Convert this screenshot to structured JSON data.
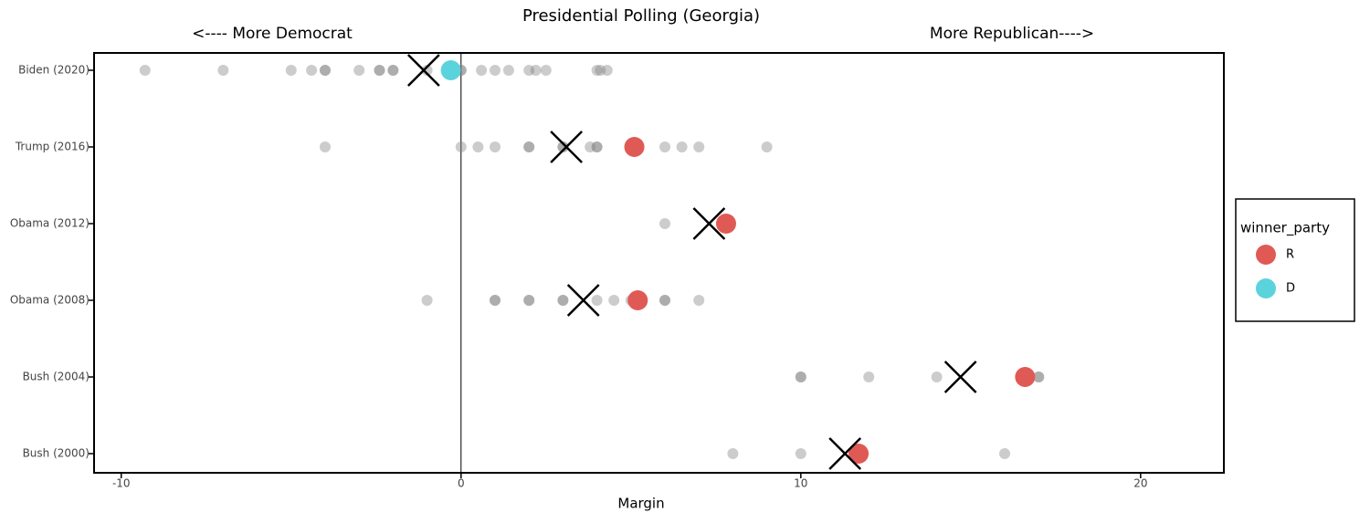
{
  "chart_data": {
    "type": "strip",
    "title": "Presidential Polling (Georgia)",
    "annotations": [
      "<---- More Democrat",
      "More Republican---->"
    ],
    "x_label": "Margin",
    "categories": [
      "Biden (2020)",
      "Trump (2016)",
      "Obama (2012)",
      "Obama (2008)",
      "Bush (2004)",
      "Bush (2000)"
    ],
    "xlim": [
      -10.8,
      22.45
    ],
    "xticks": [
      -10,
      0,
      10,
      20
    ],
    "vline": 0,
    "legend_title": "winner_party",
    "legend": "right",
    "series": [
      {
        "color": "#808080",
        "marker": "dot",
        "x": [
          [
            -9.3,
            -7.0,
            -5.0,
            -4.4,
            -4.0,
            -4.0,
            -3.0,
            -2.4,
            -2.4,
            -2.0,
            -2.0,
            -1.0,
            0.0,
            0.0,
            0.6,
            1.0,
            1.4,
            2.0,
            2.2,
            2.5,
            4.0,
            4.1,
            4.3
          ],
          [
            -4.0,
            0.0,
            0.5,
            1.0,
            2.0,
            2.0,
            3.0,
            3.0,
            3.8,
            4.0,
            4.0,
            6.0,
            6.5,
            7.0,
            9.0
          ],
          [
            6.0,
            7.9
          ],
          [
            -1.0,
            1.0,
            1.0,
            2.0,
            2.0,
            3.0,
            3.0,
            4.0,
            4.5,
            5.0,
            6.0,
            6.0,
            7.0
          ],
          [
            10.0,
            10.0,
            12.0,
            14.0,
            17.0,
            17.0
          ],
          [
            8.0,
            10.0,
            16.0
          ]
        ]
      },
      {
        "name": "R",
        "color": "#e05a55",
        "marker": "big-dot",
        "values": [
          null,
          5.1,
          7.8,
          5.2,
          16.6,
          11.7
        ]
      },
      {
        "name": "D",
        "color": "#5bd3dc",
        "marker": "big-dot",
        "values": [
          -0.3,
          null,
          null,
          null,
          null,
          null
        ]
      },
      {
        "color": "#000000",
        "marker": "x",
        "values": [
          -1.1,
          3.1,
          7.3,
          3.6,
          14.7,
          11.3
        ]
      }
    ]
  }
}
